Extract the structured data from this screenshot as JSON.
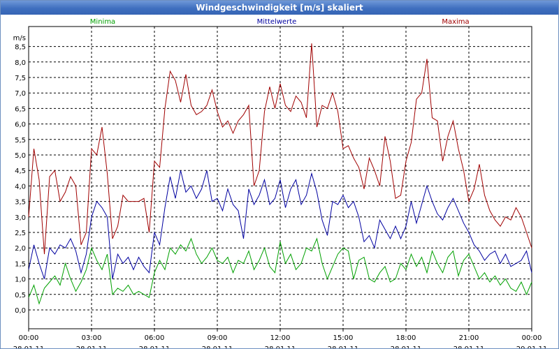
{
  "window": {
    "title": "Windgeschwindigkeit [m/s] skaliert"
  },
  "chart_data": {
    "type": "line",
    "title": "Windgeschwindigkeit [m/s] skaliert",
    "ylabel": "m/s",
    "ylim": [
      -0.5,
      9.0
    ],
    "yticks": [
      "0,0",
      "0,5",
      "1,0",
      "1,5",
      "2,0",
      "2,5",
      "3,0",
      "3,5",
      "4,0",
      "4,5",
      "5,0",
      "5,5",
      "6,0",
      "6,5",
      "7,0",
      "7,5",
      "8,0",
      "8,5"
    ],
    "x_tick_times": [
      "00:00",
      "03:00",
      "06:00",
      "09:00",
      "12:00",
      "15:00",
      "18:00",
      "21:00",
      "00:00"
    ],
    "x_tick_dates": [
      "28.01.11",
      "28.01.11",
      "28.01.11",
      "28.01.11",
      "28.01.11",
      "28.01.11",
      "28.01.11",
      "28.01.11",
      "29.01.11"
    ],
    "x_hours": [
      0,
      0.25,
      0.5,
      0.75,
      1,
      1.25,
      1.5,
      1.75,
      2,
      2.25,
      2.5,
      2.75,
      3,
      3.25,
      3.5,
      3.75,
      4,
      4.25,
      4.5,
      4.75,
      5,
      5.25,
      5.5,
      5.75,
      6,
      6.25,
      6.5,
      6.75,
      7,
      7.25,
      7.5,
      7.75,
      8,
      8.25,
      8.5,
      8.75,
      9,
      9.25,
      9.5,
      9.75,
      10,
      10.25,
      10.5,
      10.75,
      11,
      11.25,
      11.5,
      11.75,
      12,
      12.25,
      12.5,
      12.75,
      13,
      13.25,
      13.5,
      13.75,
      14,
      14.25,
      14.5,
      14.75,
      15,
      15.25,
      15.5,
      15.75,
      16,
      16.25,
      16.5,
      16.75,
      17,
      17.25,
      17.5,
      17.75,
      18,
      18.25,
      18.5,
      18.75,
      19,
      19.25,
      19.5,
      19.75,
      20,
      20.25,
      20.5,
      20.75,
      21,
      21.25,
      21.5,
      21.75,
      22,
      22.25,
      22.5,
      22.75,
      23,
      23.25,
      23.5,
      23.75,
      24
    ],
    "grid": true,
    "legend": "top",
    "series": [
      {
        "name": "Minima",
        "color": "#00a000",
        "values": [
          0.4,
          0.8,
          0.2,
          0.7,
          0.9,
          1.1,
          0.8,
          1.5,
          1.0,
          0.6,
          0.9,
          1.3,
          2.0,
          1.6,
          1.3,
          1.8,
          0.5,
          0.7,
          0.6,
          0.8,
          0.5,
          0.6,
          0.5,
          0.4,
          1.2,
          1.6,
          1.3,
          2.0,
          1.8,
          2.1,
          1.9,
          2.3,
          1.8,
          1.5,
          1.7,
          2.0,
          1.6,
          1.5,
          1.7,
          1.2,
          1.6,
          1.5,
          1.9,
          1.3,
          1.6,
          2.0,
          1.4,
          1.2,
          2.2,
          1.5,
          1.8,
          1.3,
          1.5,
          2.0,
          1.9,
          2.3,
          1.5,
          1.0,
          1.4,
          1.8,
          2.0,
          1.9,
          1.0,
          1.6,
          1.7,
          1.0,
          0.9,
          1.2,
          1.4,
          0.9,
          1.0,
          1.5,
          1.3,
          1.8,
          1.4,
          1.7,
          1.2,
          1.9,
          1.5,
          1.2,
          1.7,
          1.9,
          1.1,
          1.6,
          1.8,
          1.4,
          1.0,
          1.2,
          0.9,
          1.1,
          0.8,
          1.0,
          0.7,
          0.6,
          0.9,
          0.5,
          0.9
        ]
      },
      {
        "name": "Mittelwerte",
        "color": "#0000a0",
        "values": [
          1.3,
          2.1,
          1.5,
          1.0,
          2.0,
          1.8,
          2.1,
          2.0,
          2.3,
          1.9,
          1.2,
          1.8,
          3.0,
          3.5,
          3.3,
          3.0,
          1.0,
          1.8,
          1.5,
          1.7,
          1.3,
          1.7,
          1.4,
          1.2,
          2.5,
          2.1,
          3.3,
          4.3,
          3.6,
          4.5,
          3.8,
          4.0,
          3.6,
          3.9,
          4.5,
          3.5,
          3.6,
          3.2,
          3.9,
          3.4,
          3.2,
          2.3,
          3.9,
          3.4,
          3.7,
          4.2,
          3.4,
          3.6,
          4.2,
          3.3,
          3.9,
          4.2,
          3.4,
          3.7,
          4.4,
          3.8,
          2.9,
          2.4,
          3.5,
          3.4,
          3.7,
          3.3,
          3.5,
          3.0,
          2.2,
          2.4,
          2.0,
          2.9,
          2.6,
          2.3,
          2.7,
          2.3,
          2.7,
          3.5,
          2.8,
          3.4,
          4.0,
          3.5,
          3.1,
          2.9,
          3.3,
          3.6,
          3.2,
          2.8,
          2.5,
          2.1,
          1.9,
          1.6,
          1.8,
          1.9,
          1.5,
          1.8,
          1.4,
          1.5,
          1.6,
          1.9,
          1.2
        ]
      },
      {
        "name": "Maxima",
        "color": "#a00000",
        "values": [
          3.0,
          5.2,
          4.2,
          1.8,
          4.3,
          4.5,
          3.5,
          3.8,
          4.3,
          4.0,
          2.1,
          2.5,
          5.2,
          5.0,
          5.9,
          4.4,
          2.3,
          2.7,
          3.7,
          3.5,
          3.5,
          3.5,
          3.6,
          2.5,
          4.8,
          4.6,
          6.5,
          7.7,
          7.4,
          6.7,
          7.6,
          6.6,
          6.3,
          6.4,
          6.6,
          7.1,
          6.4,
          5.9,
          6.1,
          5.7,
          6.1,
          6.3,
          6.6,
          4.0,
          4.5,
          6.4,
          7.2,
          6.5,
          7.3,
          6.6,
          6.4,
          6.9,
          6.7,
          6.2,
          8.6,
          5.9,
          6.6,
          6.5,
          7.0,
          6.4,
          5.2,
          5.3,
          4.9,
          4.6,
          3.9,
          4.9,
          4.5,
          4.0,
          5.6,
          4.8,
          3.6,
          3.7,
          4.8,
          5.4,
          6.8,
          7.0,
          8.1,
          6.2,
          6.1,
          4.8,
          5.6,
          6.1,
          5.2,
          4.5,
          3.5,
          3.9,
          4.7,
          3.7,
          3.2,
          2.9,
          2.7,
          3.0,
          2.9,
          3.3,
          3.0,
          2.5,
          2.0
        ]
      }
    ]
  }
}
